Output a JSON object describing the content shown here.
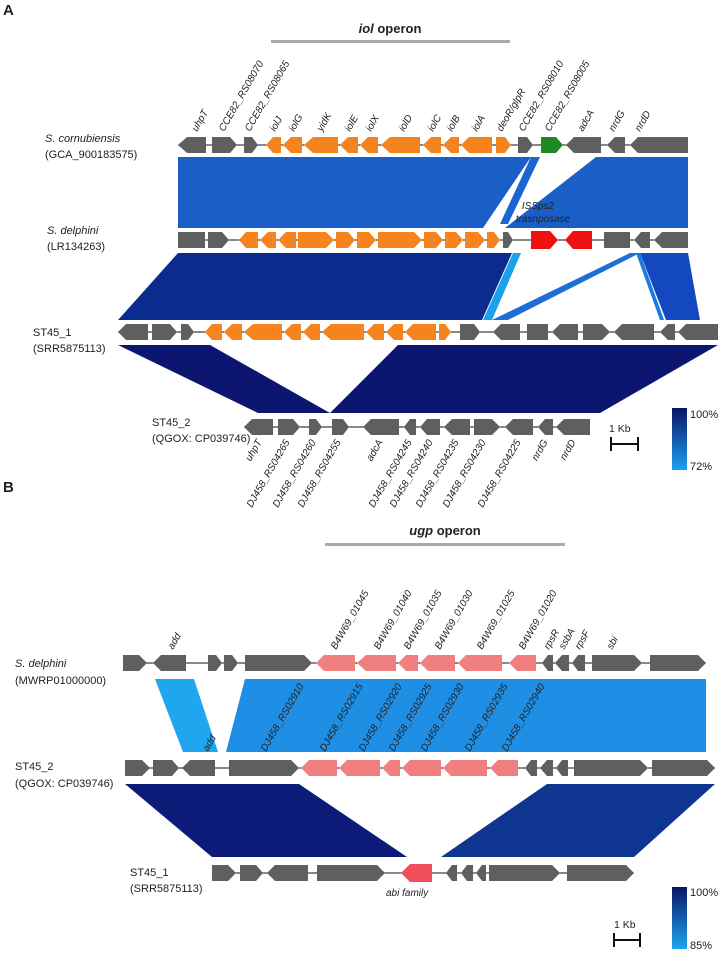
{
  "colors": {
    "gene_default": "#5f5f5f",
    "iol_gene": "#f5841f",
    "green_gene": "#1e8a24",
    "transposase": "#ee1111",
    "ugp_gene": "#f08080",
    "abi_gene": "#ef4e5a",
    "backbone": "#111111",
    "operon_bar": "#aaaaaa",
    "identity_high": "#0a1466",
    "identity_low_A": "#1ea0ee",
    "identity_low_B": "#1fa6ef"
  },
  "panel_a": {
    "letter": "A",
    "operon_title_it": "iol",
    "operon_title_rest": " operon",
    "tracks": [
      {
        "name": "S. cornubiensis",
        "accession": "(GCA_900183575)"
      },
      {
        "name": "S. delphini",
        "accession": "(LR134263)"
      },
      {
        "name": "ST45_1",
        "accession": "(SRR5875113)"
      },
      {
        "name": "ST45_2",
        "accession": "(QGOX: CP039746)"
      }
    ],
    "top_labels": [
      "uhpT",
      "CCE82_RS08070",
      "CCE82_RS08065",
      "iolJ",
      "iolG",
      "yidK",
      "iolE",
      "iolX",
      "iolD",
      "iolC",
      "iolB",
      "iolA",
      "deoR/glpR",
      "CCE82_RS08010",
      "CCE82_RS08005",
      "adcA",
      "nrdG",
      "nrdD"
    ],
    "transposase_label": [
      "ISSps2",
      "trasnposase"
    ],
    "bottom_labels": [
      "uhpT",
      "DJ458_RS04265",
      "DJ458_RS04260",
      "DJ458_RS04255",
      "adcA",
      "DJ458_RS04245",
      "DJ458_RS04240",
      "DJ458_RS04235",
      "DJ458_RS04230",
      "DJ458_RS04225",
      "nrdG",
      "nrdD"
    ],
    "scale_label": "1 Kb",
    "legend_max": "100%",
    "legend_min": "72%"
  },
  "panel_b": {
    "letter": "B",
    "operon_title_it": "ugp",
    "operon_title_rest": " operon",
    "tracks": [
      {
        "name": "S. delphini",
        "accession": "(MWRP01000000)"
      },
      {
        "name": "ST45_2",
        "accession": "(QGOX: CP039746)"
      },
      {
        "name": "ST45_1",
        "accession": "(SRR5875113)"
      }
    ],
    "top_labels": [
      "add",
      "B4W69_01045",
      "B4W69_01040",
      "B4W69_01035",
      "B4W69_01030",
      "B4W69_01025",
      "B4W69_01020",
      "rpsR",
      "ssbA",
      "rpsF",
      "sbi"
    ],
    "middle_labels": [
      "add",
      "DJ458_RS02910",
      "DJ458_RS02915",
      "DJ458_RS02920",
      "DJ458_RS02925",
      "DJ458_RS02930",
      "DJ458_RS02935",
      "DJ458_RS02940"
    ],
    "abi_label": "abi family",
    "scale_label": "1 Kb",
    "legend_max": "100%",
    "legend_min": "85%"
  }
}
